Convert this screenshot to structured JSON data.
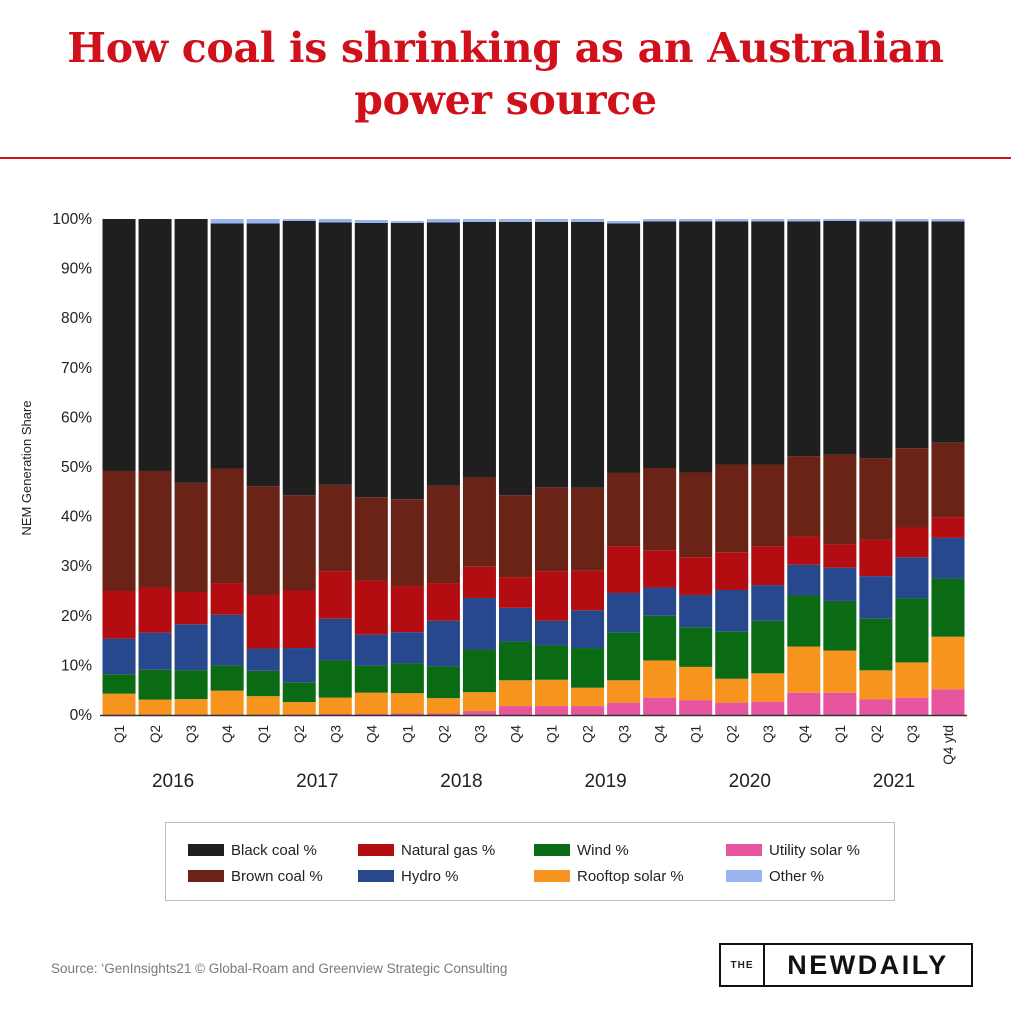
{
  "title": "How coal is shrinking as an Australian power source",
  "source": "Source: ‘GenInsights21 © Global-Roam and Greenview Strategic Consulting",
  "logo": {
    "prefix": "THE",
    "name": "NEWDAILY"
  },
  "chart_data": {
    "type": "bar",
    "stacked": true,
    "ylabel": "NEM Generation Share",
    "xlabel": "",
    "ylim": [
      0,
      100
    ],
    "yticks": [
      "0%",
      "10%",
      "20%",
      "30%",
      "40%",
      "50%",
      "60%",
      "70%",
      "80%",
      "90%",
      "100%"
    ],
    "categories": [
      "Q1",
      "Q2",
      "Q3",
      "Q4",
      "Q1",
      "Q2",
      "Q3",
      "Q4",
      "Q1",
      "Q2",
      "Q3",
      "Q4",
      "Q1",
      "Q2",
      "Q3",
      "Q4",
      "Q1",
      "Q2",
      "Q3",
      "Q4",
      "Q1",
      "Q2",
      "Q3",
      "Q4 ytd"
    ],
    "year_labels": [
      {
        "label": "2016",
        "from": 0,
        "to": 3
      },
      {
        "label": "2017",
        "from": 4,
        "to": 7
      },
      {
        "label": "2018",
        "from": 8,
        "to": 11
      },
      {
        "label": "2019",
        "from": 12,
        "to": 15
      },
      {
        "label": "2020",
        "from": 16,
        "to": 19
      },
      {
        "label": "2021",
        "from": 20,
        "to": 23
      }
    ],
    "series": [
      {
        "name": "Utility solar %",
        "color": "#e8559f",
        "values": [
          0.1,
          0.1,
          0.1,
          0.1,
          0.1,
          0.1,
          0.2,
          0.2,
          0.3,
          0.3,
          0.8,
          1.8,
          1.8,
          1.8,
          2.5,
          3.5,
          3.0,
          2.5,
          2.7,
          4.5,
          4.5,
          3.2,
          3.5,
          5.2
        ]
      },
      {
        "name": "Rooftop solar %",
        "color": "#f7941d",
        "values": [
          4.2,
          3.0,
          3.1,
          4.8,
          3.7,
          2.5,
          3.3,
          4.3,
          4.1,
          3.1,
          3.8,
          5.2,
          5.3,
          3.7,
          4.5,
          7.5,
          6.7,
          4.8,
          5.7,
          9.3,
          8.5,
          5.8,
          7.1,
          10.6
        ]
      },
      {
        "name": "Wind %",
        "color": "#0a6b14",
        "values": [
          3.9,
          6.0,
          5.8,
          5.1,
          5.1,
          4.0,
          7.5,
          5.4,
          6.0,
          6.4,
          8.6,
          7.8,
          6.9,
          8.0,
          9.6,
          9.0,
          8.0,
          9.5,
          10.6,
          10.3,
          10.0,
          10.4,
          12.9,
          11.7
        ]
      },
      {
        "name": "Hydro %",
        "color": "#27488c",
        "values": [
          7.2,
          7.5,
          9.3,
          10.2,
          4.5,
          6.9,
          8.4,
          6.3,
          6.3,
          9.2,
          10.4,
          6.8,
          5.0,
          7.6,
          8.0,
          5.7,
          6.5,
          8.4,
          7.2,
          6.2,
          6.7,
          8.6,
          8.3,
          8.2
        ]
      },
      {
        "name": "Natural gas %",
        "color": "#b30d12",
        "values": [
          9.6,
          9.1,
          6.5,
          6.4,
          10.8,
          11.6,
          9.6,
          10.9,
          9.3,
          7.6,
          6.3,
          6.2,
          10.0,
          8.0,
          9.4,
          7.5,
          7.6,
          7.6,
          7.8,
          5.7,
          4.7,
          7.3,
          6.0,
          4.2
        ]
      },
      {
        "name": "Brown coal %",
        "color": "#6b2318",
        "values": [
          24.2,
          23.5,
          22.0,
          23.1,
          21.9,
          19.2,
          17.4,
          16.8,
          17.5,
          19.6,
          18.0,
          16.5,
          16.9,
          16.7,
          14.8,
          16.6,
          17.1,
          17.7,
          16.5,
          16.2,
          18.1,
          16.5,
          16.0,
          15.0
        ]
      },
      {
        "name": "Black coal %",
        "color": "#1f1f1f",
        "values": [
          50.8,
          50.8,
          53.2,
          49.4,
          53.0,
          55.3,
          52.9,
          55.3,
          55.7,
          53.1,
          51.5,
          55.1,
          53.5,
          53.6,
          50.3,
          49.7,
          50.6,
          49.0,
          49.0,
          47.3,
          47.1,
          47.7,
          45.7,
          44.6
        ]
      },
      {
        "name": "Other %",
        "color": "#99b5f0",
        "values": [
          0.0,
          0.0,
          0.0,
          0.9,
          0.9,
          0.4,
          0.7,
          0.6,
          0.4,
          0.7,
          0.6,
          0.6,
          0.6,
          0.6,
          0.5,
          0.5,
          0.5,
          0.5,
          0.5,
          0.5,
          0.4,
          0.5,
          0.5,
          0.5
        ]
      }
    ],
    "legend": {
      "placement": "bottom",
      "items": [
        {
          "label": "Black coal %",
          "color": "#1f1f1f"
        },
        {
          "label": "Natural gas %",
          "color": "#b30d12"
        },
        {
          "label": "Wind %",
          "color": "#0a6b14"
        },
        {
          "label": "Utility solar %",
          "color": "#e8559f"
        },
        {
          "label": "Brown coal %",
          "color": "#6b2318"
        },
        {
          "label": "Hydro %",
          "color": "#27488c"
        },
        {
          "label": "Rooftop solar %",
          "color": "#f7941d"
        },
        {
          "label": "Other %",
          "color": "#99b5f0"
        }
      ]
    }
  }
}
